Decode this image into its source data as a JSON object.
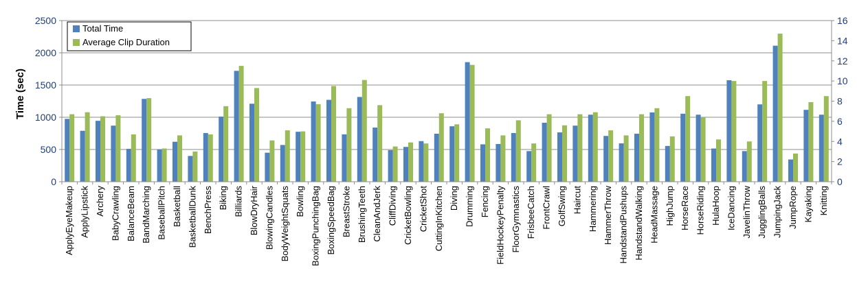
{
  "chart_data": {
    "type": "bar",
    "ylabel": "Time (sec)",
    "ylim": [
      0,
      2500
    ],
    "yticks": [
      "0",
      "500",
      "1000",
      "1500",
      "2000",
      "2500"
    ],
    "y2lim": [
      0,
      16
    ],
    "y2ticks": [
      "0",
      "2",
      "4",
      "6",
      "8",
      "10",
      "12",
      "14",
      "16"
    ],
    "grid": true,
    "legend_position": "top-left",
    "categories": [
      "ApplyEyeMakeup",
      "ApplyLipstick",
      "Archery",
      "BabyCrawling",
      "BalanceBeam",
      "BandMarching",
      "BaseballPitch",
      "Basketball",
      "BasketballDunk",
      "BenchPress",
      "Biking",
      "Billiards",
      "BlowDryHair",
      "BlowingCandles",
      "BodyWeightSquats",
      "Bowling",
      "BoxingPunchingBag",
      "BoxingSpeedBag",
      "BreastStroke",
      "BrushingTeeth",
      "CleanAndJerk",
      "CliffDiving",
      "CricketBowling",
      "CricketShot",
      "CuttingInKitchen",
      "Diving",
      "Drumming",
      "Fencing",
      "FieldHockeyPenalty",
      "FloorGymnastics",
      "FrisbeeCatch",
      "FrontCrawl",
      "GolfSwing",
      "Haircut",
      "Hammering",
      "HammerThrow",
      "HandstandPushups",
      "HandstandWalking",
      "HeadMassage",
      "HighJump",
      "HorseRace",
      "HorseRiding",
      "HulaHoop",
      "IceDancing",
      "JavelinThrow",
      "JugglingBalls",
      "JumpingJack",
      "JumpRope",
      "Kayaking",
      "Knitting"
    ],
    "series": [
      {
        "name": "Total Time",
        "axis": "left",
        "color": "#4f81bd",
        "values": [
          975,
          790,
          945,
          870,
          510,
          1285,
          500,
          620,
          400,
          755,
          1010,
          1720,
          1210,
          450,
          570,
          775,
          1245,
          1270,
          735,
          1315,
          840,
          490,
          540,
          630,
          745,
          860,
          1855,
          580,
          585,
          755,
          475,
          915,
          765,
          870,
          1040,
          710,
          595,
          745,
          1075,
          555,
          1055,
          1040,
          515,
          1575,
          475,
          1200,
          2110,
          345,
          1115,
          1040
        ]
      },
      {
        "name": "Average Clip Duration",
        "axis": "right",
        "color": "#9bbb59",
        "values": [
          6.7,
          6.9,
          6.5,
          6.6,
          4.7,
          8.3,
          3.3,
          4.6,
          3.0,
          4.7,
          7.5,
          11.5,
          9.3,
          4.1,
          5.1,
          5.0,
          7.7,
          9.5,
          7.3,
          10.1,
          7.6,
          3.5,
          3.9,
          3.8,
          6.8,
          5.7,
          11.6,
          5.3,
          4.6,
          6.1,
          3.8,
          6.7,
          5.6,
          6.7,
          6.9,
          5.1,
          4.6,
          6.7,
          7.3,
          4.5,
          8.5,
          6.4,
          4.2,
          10.0,
          4.0,
          10.0,
          14.7,
          2.8,
          7.9,
          8.5
        ]
      }
    ]
  }
}
